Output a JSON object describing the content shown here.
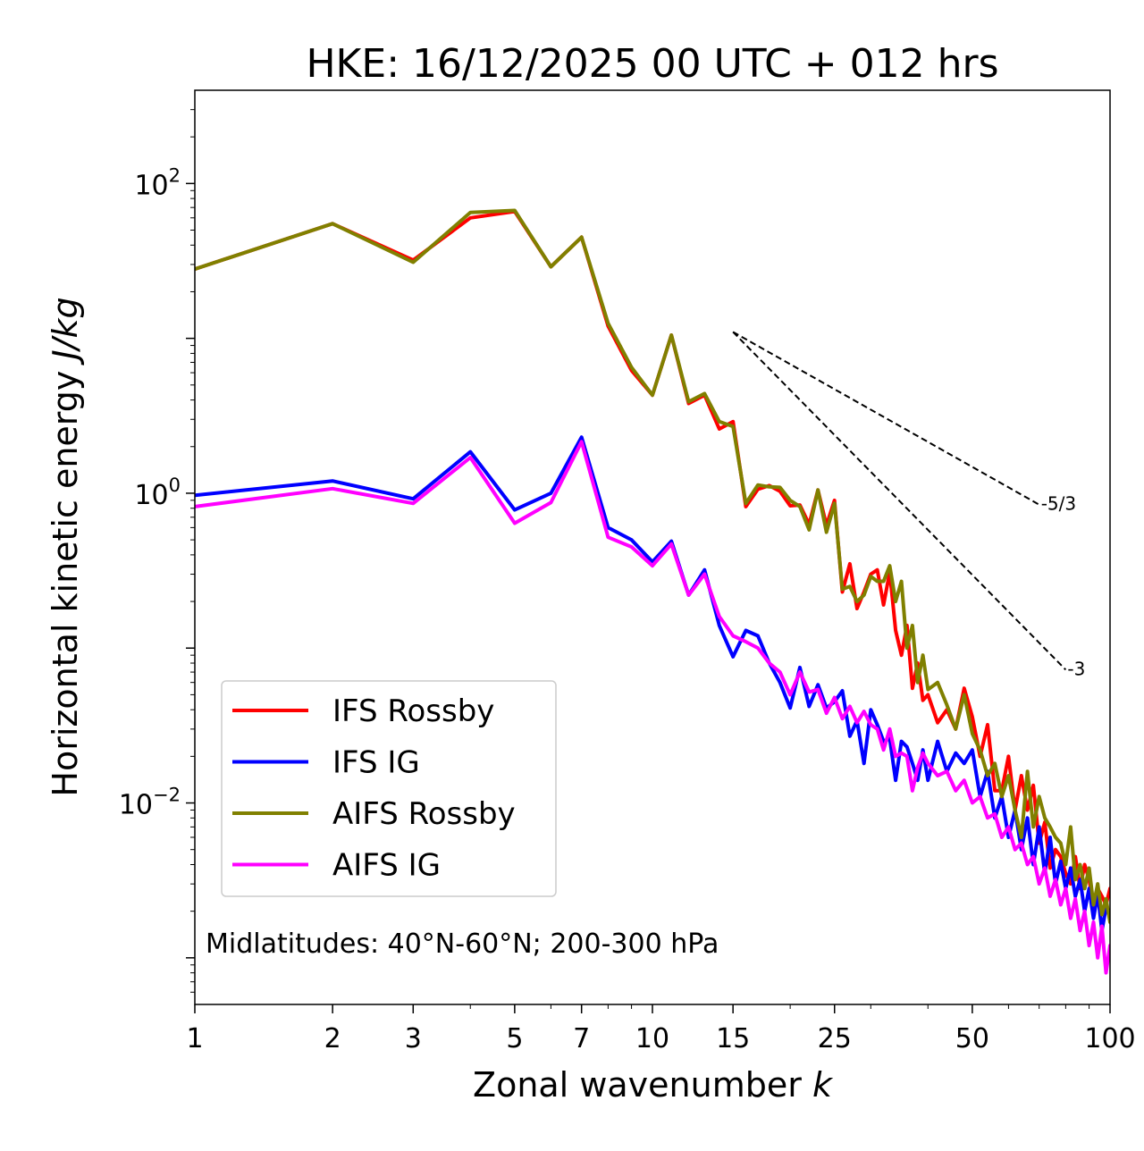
{
  "chart_data": {
    "type": "line",
    "title": "HKE: 16/12/2025 00 UTC + 012 hrs",
    "xlabel": "Zonal wavenumber",
    "xlabel_var": "k",
    "ylabel": "Horizontal kinetic energy",
    "ylabel_unit": "J/kg",
    "xscale": "log",
    "yscale": "log",
    "xlim": [
      1,
      100
    ],
    "ylim": [
      0.0005,
      400
    ],
    "x_ticks": [
      1,
      2,
      3,
      5,
      7,
      10,
      15,
      25,
      50,
      100
    ],
    "x_tick_labels": [
      "1",
      "2",
      "3",
      "5",
      "7",
      "10",
      "15",
      "25",
      "50",
      "100"
    ],
    "y_ticks": [
      0.01,
      1,
      100
    ],
    "y_tick_labels": [
      {
        "base": "10",
        "exp": "−2"
      },
      {
        "base": "10",
        "exp": "0"
      },
      {
        "base": "10",
        "exp": "2"
      }
    ],
    "legend_position": "lower-left",
    "annotation": "Midlatitudes: 40°N-60°N; 200-300 hPa",
    "reference_lines": [
      {
        "label": "-5/3",
        "slope": -1.6667,
        "x_start": 15,
        "y_start": 11.0,
        "x_end": 70
      },
      {
        "label": "-3",
        "slope": -3,
        "x_start": 15,
        "y_start": 11.0,
        "x_end": 80
      }
    ],
    "series": [
      {
        "name": "IFS Rossby",
        "color": "#ff0000",
        "x": [
          1,
          2,
          3,
          4,
          5,
          6,
          7,
          8,
          9,
          10,
          11,
          12,
          13,
          14,
          15,
          16,
          17,
          18,
          19,
          20,
          21,
          22,
          23,
          24,
          25,
          26,
          27,
          28,
          29,
          30,
          31,
          32,
          33,
          34,
          35,
          36,
          37,
          38,
          39,
          40,
          42,
          44,
          46,
          48,
          50,
          52,
          54,
          56,
          58,
          60,
          62,
          64,
          66,
          68,
          70,
          72,
          74,
          76,
          78,
          80,
          82,
          84,
          86,
          88,
          90,
          92,
          94,
          96,
          98,
          100
        ],
        "y": [
          28,
          55,
          32,
          60,
          66,
          29,
          45,
          12,
          6.2,
          4.3,
          10.5,
          3.8,
          4.3,
          2.6,
          2.9,
          0.82,
          1.06,
          1.12,
          1.03,
          0.83,
          0.84,
          0.63,
          1.05,
          0.62,
          0.9,
          0.23,
          0.35,
          0.18,
          0.23,
          0.3,
          0.32,
          0.19,
          0.31,
          0.13,
          0.09,
          0.14,
          0.055,
          0.08,
          0.046,
          0.05,
          0.033,
          0.04,
          0.03,
          0.055,
          0.036,
          0.02,
          0.032,
          0.012,
          0.012,
          0.02,
          0.009,
          0.015,
          0.009,
          0.013,
          0.0055,
          0.0075,
          0.0038,
          0.005,
          0.0045,
          0.0035,
          0.003,
          0.0045,
          0.0028,
          0.004,
          0.0032,
          0.0022,
          0.0028,
          0.0025,
          0.0022,
          0.0028
        ]
      },
      {
        "name": "IFS IG",
        "color": "#0000ff",
        "x": [
          1,
          2,
          3,
          4,
          5,
          6,
          7,
          8,
          9,
          10,
          11,
          12,
          13,
          14,
          15,
          16,
          17,
          18,
          19,
          20,
          21,
          22,
          23,
          24,
          25,
          26,
          27,
          28,
          29,
          30,
          31,
          32,
          33,
          34,
          35,
          36,
          37,
          38,
          39,
          40,
          42,
          44,
          46,
          48,
          50,
          52,
          54,
          56,
          58,
          60,
          62,
          64,
          66,
          68,
          70,
          72,
          74,
          76,
          78,
          80,
          82,
          84,
          86,
          88,
          90,
          92,
          94,
          96,
          98,
          100
        ],
        "y": [
          0.97,
          1.2,
          0.92,
          1.85,
          0.78,
          1.0,
          2.3,
          0.6,
          0.5,
          0.36,
          0.49,
          0.22,
          0.32,
          0.14,
          0.088,
          0.13,
          0.12,
          0.08,
          0.06,
          0.041,
          0.075,
          0.042,
          0.058,
          0.041,
          0.045,
          0.053,
          0.027,
          0.034,
          0.018,
          0.04,
          0.032,
          0.025,
          0.026,
          0.014,
          0.025,
          0.023,
          0.018,
          0.014,
          0.022,
          0.014,
          0.025,
          0.016,
          0.021,
          0.018,
          0.022,
          0.011,
          0.016,
          0.008,
          0.011,
          0.006,
          0.009,
          0.005,
          0.008,
          0.004,
          0.007,
          0.0035,
          0.006,
          0.003,
          0.0042,
          0.0028,
          0.0038,
          0.0025,
          0.0032,
          0.002,
          0.0028,
          0.0018,
          0.0026,
          0.0015,
          0.0021,
          0.0019
        ]
      },
      {
        "name": "AIFS Rossby",
        "color": "#808000",
        "x": [
          1,
          2,
          3,
          4,
          5,
          6,
          7,
          8,
          9,
          10,
          11,
          12,
          13,
          14,
          15,
          16,
          17,
          18,
          19,
          20,
          21,
          22,
          23,
          24,
          25,
          26,
          27,
          28,
          29,
          30,
          31,
          32,
          33,
          34,
          35,
          36,
          37,
          38,
          39,
          40,
          42,
          44,
          46,
          48,
          50,
          52,
          54,
          56,
          58,
          60,
          62,
          64,
          66,
          68,
          70,
          72,
          74,
          76,
          78,
          80,
          82,
          84,
          86,
          88,
          90,
          92,
          94,
          96,
          98,
          100
        ],
        "y": [
          28,
          55,
          31,
          65,
          67,
          29,
          45,
          12.5,
          6.5,
          4.3,
          10.5,
          3.9,
          4.4,
          2.9,
          2.7,
          0.86,
          1.13,
          1.1,
          1.09,
          0.9,
          0.82,
          0.58,
          1.05,
          0.56,
          0.86,
          0.24,
          0.25,
          0.2,
          0.22,
          0.29,
          0.27,
          0.27,
          0.34,
          0.2,
          0.27,
          0.1,
          0.14,
          0.06,
          0.09,
          0.054,
          0.06,
          0.043,
          0.03,
          0.05,
          0.028,
          0.022,
          0.015,
          0.018,
          0.011,
          0.015,
          0.009,
          0.006,
          0.016,
          0.007,
          0.011,
          0.008,
          0.007,
          0.006,
          0.0055,
          0.004,
          0.007,
          0.0032,
          0.004,
          0.0028,
          0.0038,
          0.0022,
          0.003,
          0.0019,
          0.0024,
          0.0017
        ]
      },
      {
        "name": "AIFS IG",
        "color": "#ff00ff",
        "x": [
          1,
          2,
          3,
          4,
          5,
          6,
          7,
          8,
          9,
          10,
          11,
          12,
          13,
          14,
          15,
          16,
          17,
          18,
          19,
          20,
          21,
          22,
          23,
          24,
          25,
          26,
          27,
          28,
          29,
          30,
          31,
          32,
          33,
          34,
          35,
          36,
          37,
          38,
          39,
          40,
          42,
          44,
          46,
          48,
          50,
          52,
          54,
          56,
          58,
          60,
          62,
          64,
          66,
          68,
          70,
          72,
          74,
          76,
          78,
          80,
          82,
          84,
          86,
          88,
          90,
          92,
          94,
          96,
          98,
          100
        ],
        "y": [
          0.82,
          1.07,
          0.86,
          1.7,
          0.64,
          0.87,
          2.15,
          0.52,
          0.45,
          0.34,
          0.47,
          0.22,
          0.3,
          0.16,
          0.12,
          0.11,
          0.1,
          0.08,
          0.07,
          0.05,
          0.07,
          0.052,
          0.054,
          0.038,
          0.048,
          0.035,
          0.042,
          0.033,
          0.039,
          0.032,
          0.03,
          0.022,
          0.03,
          0.02,
          0.021,
          0.02,
          0.012,
          0.017,
          0.021,
          0.018,
          0.015,
          0.016,
          0.012,
          0.014,
          0.01,
          0.011,
          0.008,
          0.0085,
          0.006,
          0.007,
          0.005,
          0.0055,
          0.004,
          0.0045,
          0.003,
          0.0038,
          0.0025,
          0.0032,
          0.0022,
          0.0028,
          0.0018,
          0.0024,
          0.0015,
          0.002,
          0.0012,
          0.0017,
          0.001,
          0.0016,
          0.0008,
          0.0012
        ]
      }
    ]
  }
}
